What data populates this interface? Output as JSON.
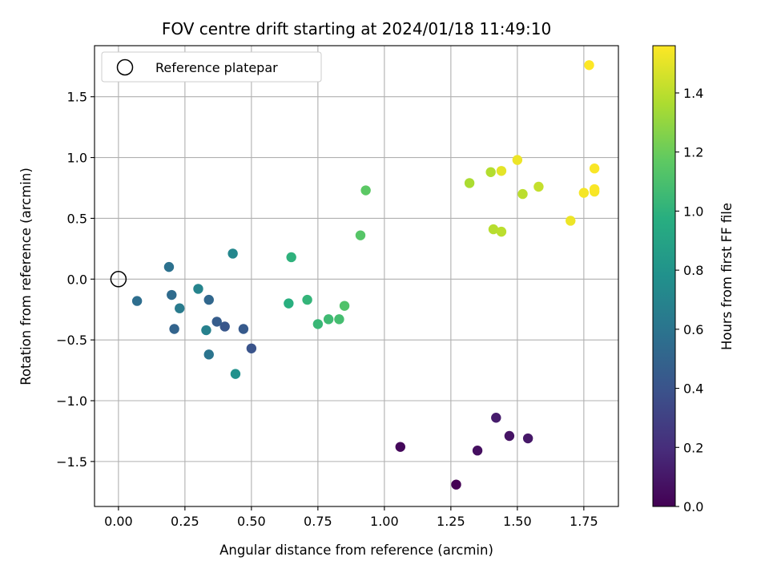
{
  "chart_data": {
    "type": "scatter",
    "title": "FOV centre drift starting at 2024/01/18 11:49:10",
    "xlabel": "Angular distance from reference (arcmin)",
    "ylabel": "Rotation from reference (arcmin)",
    "xlim": [
      -0.09,
      1.88
    ],
    "ylim": [
      -1.87,
      1.92
    ],
    "xticks": [
      0.0,
      0.25,
      0.5,
      0.75,
      1.0,
      1.25,
      1.5,
      1.75
    ],
    "xtick_labels": [
      "0.00",
      "0.25",
      "0.50",
      "0.75",
      "1.00",
      "1.25",
      "1.50",
      "1.75"
    ],
    "yticks": [
      -1.5,
      -1.0,
      -0.5,
      0.0,
      0.5,
      1.0,
      1.5
    ],
    "ytick_labels": [
      "−1.5",
      "−1.0",
      "−0.5",
      "0.0",
      "0.5",
      "1.0",
      "1.5"
    ],
    "grid": true,
    "legend": {
      "placement": "top-left",
      "entries": [
        "Reference platepar"
      ]
    },
    "reference_point": {
      "x": 0.0,
      "y": 0.0,
      "label": "Reference platepar"
    },
    "colorbar": {
      "label": "Hours from first FF file",
      "range": [
        0.0,
        1.56
      ],
      "ticks": [
        0.0,
        0.2,
        0.4,
        0.6,
        0.8,
        1.0,
        1.2,
        1.4
      ],
      "tick_labels": [
        "0.0",
        "0.2",
        "0.4",
        "0.6",
        "0.8",
        "1.0",
        "1.2",
        "1.4"
      ],
      "colormap": "viridis"
    },
    "points": [
      {
        "x": 1.27,
        "y": -1.69,
        "t": 0.0
      },
      {
        "x": 1.06,
        "y": -1.38,
        "t": 0.03
      },
      {
        "x": 1.35,
        "y": -1.41,
        "t": 0.06
      },
      {
        "x": 1.47,
        "y": -1.29,
        "t": 0.08
      },
      {
        "x": 1.54,
        "y": -1.31,
        "t": 0.1
      },
      {
        "x": 1.42,
        "y": -1.14,
        "t": 0.12
      },
      {
        "x": 0.5,
        "y": -0.57,
        "t": 0.4
      },
      {
        "x": 0.4,
        "y": -0.39,
        "t": 0.42
      },
      {
        "x": 0.47,
        "y": -0.41,
        "t": 0.44
      },
      {
        "x": 0.37,
        "y": -0.35,
        "t": 0.46
      },
      {
        "x": 0.21,
        "y": -0.41,
        "t": 0.5
      },
      {
        "x": 0.34,
        "y": -0.17,
        "t": 0.52
      },
      {
        "x": 0.2,
        "y": -0.13,
        "t": 0.54
      },
      {
        "x": 0.07,
        "y": -0.18,
        "t": 0.56
      },
      {
        "x": 0.19,
        "y": 0.1,
        "t": 0.58
      },
      {
        "x": 0.34,
        "y": -0.62,
        "t": 0.6
      },
      {
        "x": 0.23,
        "y": -0.24,
        "t": 0.64
      },
      {
        "x": 0.33,
        "y": -0.42,
        "t": 0.68
      },
      {
        "x": 0.3,
        "y": -0.08,
        "t": 0.7
      },
      {
        "x": 0.43,
        "y": 0.21,
        "t": 0.72
      },
      {
        "x": 0.44,
        "y": -0.78,
        "t": 0.78
      },
      {
        "x": 0.64,
        "y": -0.2,
        "t": 0.98
      },
      {
        "x": 0.65,
        "y": 0.18,
        "t": 1.0
      },
      {
        "x": 0.71,
        "y": -0.17,
        "t": 1.02
      },
      {
        "x": 0.75,
        "y": -0.37,
        "t": 1.04
      },
      {
        "x": 0.79,
        "y": -0.33,
        "t": 1.06
      },
      {
        "x": 0.83,
        "y": -0.33,
        "t": 1.08
      },
      {
        "x": 0.85,
        "y": -0.22,
        "t": 1.12
      },
      {
        "x": 0.91,
        "y": 0.36,
        "t": 1.14
      },
      {
        "x": 0.93,
        "y": 0.73,
        "t": 1.16
      },
      {
        "x": 1.32,
        "y": 0.79,
        "t": 1.36
      },
      {
        "x": 1.4,
        "y": 0.88,
        "t": 1.38
      },
      {
        "x": 1.41,
        "y": 0.41,
        "t": 1.39
      },
      {
        "x": 1.44,
        "y": 0.39,
        "t": 1.4
      },
      {
        "x": 1.52,
        "y": 0.7,
        "t": 1.4
      },
      {
        "x": 1.58,
        "y": 0.76,
        "t": 1.42
      },
      {
        "x": 1.44,
        "y": 0.89,
        "t": 1.5
      },
      {
        "x": 1.5,
        "y": 0.98,
        "t": 1.52
      },
      {
        "x": 1.7,
        "y": 0.48,
        "t": 1.52
      },
      {
        "x": 1.75,
        "y": 0.71,
        "t": 1.54
      },
      {
        "x": 1.79,
        "y": 0.72,
        "t": 1.54
      },
      {
        "x": 1.79,
        "y": 0.74,
        "t": 1.55
      },
      {
        "x": 1.79,
        "y": 0.91,
        "t": 1.55
      },
      {
        "x": 1.77,
        "y": 1.76,
        "t": 1.56
      }
    ]
  }
}
